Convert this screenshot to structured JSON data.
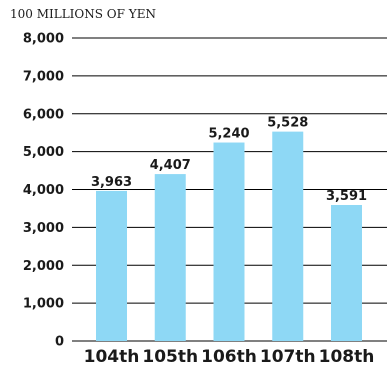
{
  "chart_data": {
    "type": "bar",
    "unit_label": "100 MILLIONS OF YEN",
    "categories": [
      "104th",
      "105th",
      "106th",
      "107th",
      "108th"
    ],
    "values": [
      3963,
      4407,
      5240,
      5528,
      3591
    ],
    "value_labels": [
      "3,963",
      "4,407",
      "5,240",
      "5,528",
      "3,591"
    ],
    "yticks": [
      0,
      1000,
      2000,
      3000,
      4000,
      5000,
      6000,
      7000,
      8000
    ],
    "ytick_labels": [
      "0",
      "1,000",
      "2,000",
      "3,000",
      "4,000",
      "5,000",
      "6,000",
      "7,000",
      "8,000"
    ],
    "ylim": [
      0,
      8000
    ],
    "grid": true,
    "bar_color": "#8ed8f5",
    "grid_color": "#000000"
  }
}
